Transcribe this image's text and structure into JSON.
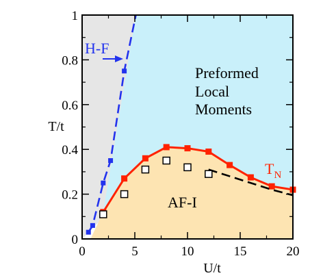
{
  "chart_data": {
    "type": "line",
    "xlabel": "U/t",
    "ylabel": "T/t",
    "xlim": [
      0,
      20
    ],
    "ylim": [
      0,
      1
    ],
    "x_ticks": [
      "0",
      "5",
      "10",
      "15",
      "20"
    ],
    "y_ticks": [
      "0",
      "0.2",
      "0.4",
      "0.6",
      "0.8",
      "1"
    ],
    "x_tick_values": [
      0,
      5,
      10,
      15,
      20
    ],
    "y_tick_values": [
      0,
      0.2,
      0.4,
      0.6,
      0.8,
      1
    ],
    "grid": false,
    "regions": [
      {
        "label": "",
        "color": "#e6e6e6",
        "polygon": [
          [
            0,
            0
          ],
          [
            0,
            1
          ],
          [
            5.1,
            1
          ],
          [
            2.1,
            0.1
          ]
        ]
      },
      {
        "label": "Preformed Local Moments",
        "lines": [
          "Preformed",
          "Local",
          "Moments"
        ],
        "color": "#c9f0fa",
        "polygon": [
          [
            5.1,
            1
          ],
          [
            20,
            1
          ],
          [
            20,
            0.22
          ],
          [
            18,
            0.235
          ],
          [
            16,
            0.275
          ],
          [
            14,
            0.33
          ],
          [
            12,
            0.39
          ],
          [
            10,
            0.405
          ],
          [
            8,
            0.41
          ],
          [
            6,
            0.36
          ],
          [
            4,
            0.27
          ],
          [
            2,
            0.12
          ]
        ]
      },
      {
        "label": "AF-I",
        "color": "#fde4b2",
        "polygon": [
          [
            0,
            0
          ],
          [
            0.8,
            0
          ],
          [
            2,
            0.12
          ],
          [
            4,
            0.27
          ],
          [
            6,
            0.36
          ],
          [
            8,
            0.41
          ],
          [
            10,
            0.405
          ],
          [
            12,
            0.39
          ],
          [
            14,
            0.33
          ],
          [
            16,
            0.275
          ],
          [
            18,
            0.235
          ],
          [
            20,
            0.22
          ],
          [
            20,
            0
          ]
        ]
      }
    ],
    "series": [
      {
        "name": "T_N",
        "label_main": "T",
        "label_sub": "N",
        "style": "solid",
        "marker": "filled-square",
        "color": "#ff2200",
        "x": [
          2,
          4,
          6,
          8,
          10,
          12,
          14,
          16,
          18,
          20
        ],
        "y": [
          0.12,
          0.27,
          0.36,
          0.41,
          0.405,
          0.39,
          0.33,
          0.275,
          0.235,
          0.22
        ]
      },
      {
        "name": "H-F",
        "style": "dashed",
        "marker": "filled-square",
        "color": "#2233ee",
        "x": [
          0.6,
          1.0,
          2.0,
          2.7,
          4.0,
          5.1
        ],
        "y": [
          0.03,
          0.06,
          0.25,
          0.35,
          0.75,
          1.0
        ],
        "marker_points": [
          [
            0.6,
            0.03
          ],
          [
            1.0,
            0.06
          ],
          [
            2.0,
            0.25
          ],
          [
            2.7,
            0.35
          ],
          [
            4.0,
            0.75
          ]
        ]
      },
      {
        "name": "",
        "style": "dashed",
        "marker": "none",
        "color": "#000000",
        "x": [
          12,
          14,
          16,
          18,
          20
        ],
        "y": [
          0.31,
          0.28,
          0.25,
          0.22,
          0.195
        ]
      },
      {
        "name": "",
        "style": "none",
        "marker": "open-square",
        "color": "#000000",
        "x": [
          2,
          4,
          6,
          8,
          10,
          12
        ],
        "y": [
          0.11,
          0.2,
          0.31,
          0.35,
          0.32,
          0.29
        ]
      }
    ],
    "annotations": [
      {
        "text": "H-F",
        "arrow": true
      }
    ]
  }
}
